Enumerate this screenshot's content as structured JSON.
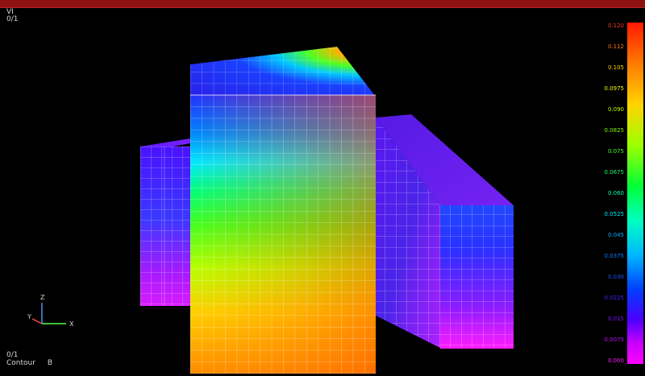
{
  "viewport": {
    "view_id": "VI",
    "view_sub": "0/1",
    "bottom_index": "0/1",
    "bottom_mode": "Contour",
    "bottom_variable": "B"
  },
  "axis_triad": {
    "z_label": "Z",
    "y_label": "Y",
    "x_label": "X"
  },
  "legend": {
    "labels": [
      "0.120",
      "0.112",
      "0.105",
      "0.0975",
      "0.090",
      "0.0825",
      "0.075",
      "0.0675",
      "0.060",
      "0.0525",
      "0.045",
      "0.0375",
      "0.030",
      "0.0225",
      "0.015",
      "0.0075",
      "0.000"
    ],
    "label_colors": [
      "#ff3a20",
      "#ff7a10",
      "#ffd000",
      "#f0ff00",
      "#bfff00",
      "#80ff00",
      "#40ff30",
      "#20ff70",
      "#00ffb0",
      "#00f0ff",
      "#00b0ff",
      "#0080ff",
      "#2050ff",
      "#4020ff",
      "#8010ff",
      "#c010ff",
      "#ff20ff"
    ]
  }
}
